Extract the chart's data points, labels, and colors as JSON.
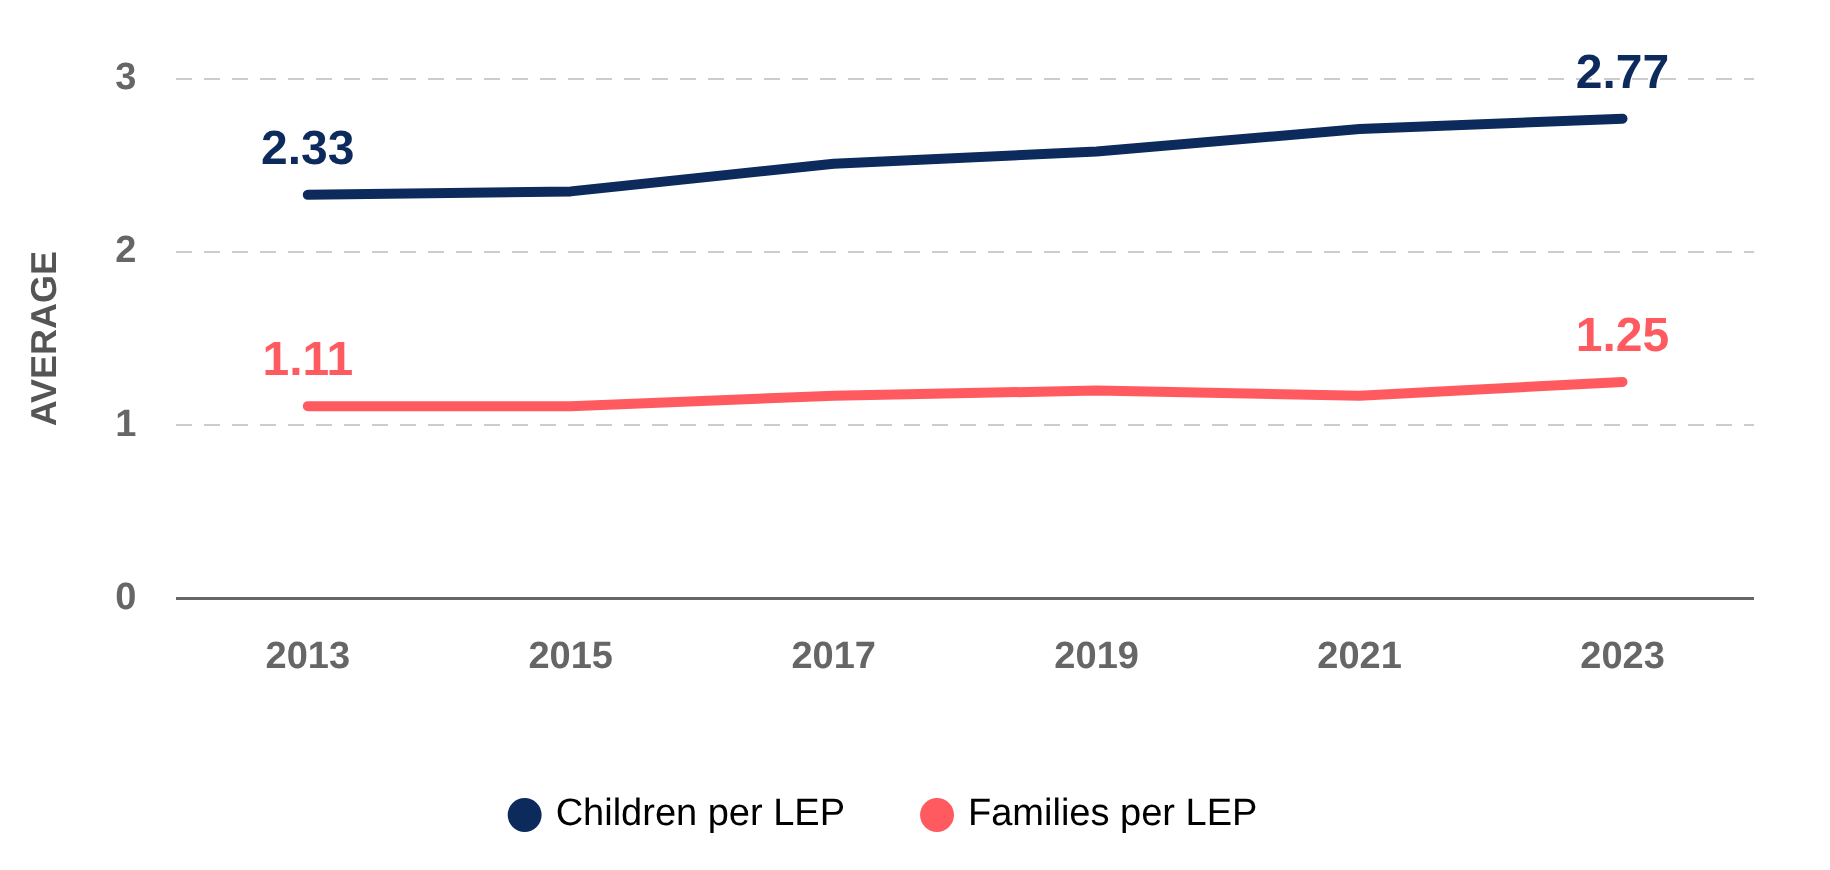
{
  "chart_data": {
    "type": "line",
    "ylabel": "AVERAGE",
    "categories": [
      "2013",
      "2015",
      "2017",
      "2019",
      "2021",
      "2023"
    ],
    "series": [
      {
        "name": "Children per LEP",
        "color": "#0d2a5c",
        "values": [
          2.33,
          2.35,
          2.51,
          2.58,
          2.71,
          2.77
        ],
        "value_labels": [
          "2.33",
          null,
          null,
          null,
          null,
          "2.77"
        ]
      },
      {
        "name": "Families per LEP",
        "color": "#ff5a5f",
        "values": [
          1.11,
          1.11,
          1.17,
          1.2,
          1.17,
          1.25
        ],
        "value_labels": [
          "1.11",
          null,
          null,
          null,
          null,
          "1.25"
        ]
      }
    ],
    "ylim": [
      0,
      3
    ],
    "yticks": [
      0,
      1,
      2,
      3
    ],
    "grid": "y",
    "legend": "bottom",
    "marker": "none",
    "line_style": "solid"
  }
}
